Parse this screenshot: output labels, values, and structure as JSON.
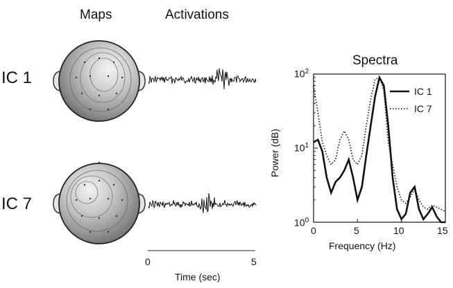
{
  "headers": {
    "maps": "Maps",
    "activations": "Activations"
  },
  "components": [
    {
      "label": "IC 1"
    },
    {
      "label": "IC 7"
    }
  ],
  "time_axis": {
    "ticks": [
      "0",
      "5"
    ],
    "label": "Time (sec)"
  },
  "chart_data": {
    "type": "line",
    "title": "Spectra",
    "xlabel": "Frequency (Hz)",
    "ylabel": "Power (dB)",
    "xlim": [
      0,
      15
    ],
    "ylim": [
      1,
      100
    ],
    "yscale": "log",
    "x_ticks": [
      "0",
      "5",
      "10",
      "15"
    ],
    "y_ticks": [
      {
        "base": "10",
        "exp": "0"
      },
      {
        "base": "10",
        "exp": "1"
      },
      {
        "base": "10",
        "exp": "2"
      }
    ],
    "legend": "top-right",
    "x": [
      0,
      0.5,
      1,
      1.5,
      2,
      2.5,
      3,
      3.5,
      4,
      4.5,
      5,
      5.5,
      6,
      6.5,
      7,
      7.5,
      8,
      8.5,
      9,
      9.5,
      10,
      10.5,
      11,
      11.5,
      12,
      12.5,
      13,
      13.5,
      14,
      14.5,
      15
    ],
    "series": [
      {
        "name": "IC 1",
        "style": "solid",
        "values": [
          12,
          13,
          9,
          4,
          2.5,
          3.5,
          4,
          5,
          7,
          4,
          2,
          3,
          8,
          20,
          50,
          90,
          70,
          20,
          4,
          1.5,
          1.1,
          1.3,
          2.5,
          3,
          1.5,
          1.1,
          1.3,
          1.6,
          1.2,
          1.0,
          1.0
        ]
      },
      {
        "name": "IC 7",
        "style": "dotted",
        "values": [
          70,
          30,
          12,
          8,
          6,
          7,
          13,
          17,
          13,
          7,
          6,
          8,
          20,
          45,
          85,
          90,
          60,
          12,
          6,
          3,
          2,
          1.8,
          2.2,
          2.8,
          2,
          1.6,
          1.5,
          1.7,
          1.6,
          1.5,
          1.4
        ]
      }
    ]
  }
}
